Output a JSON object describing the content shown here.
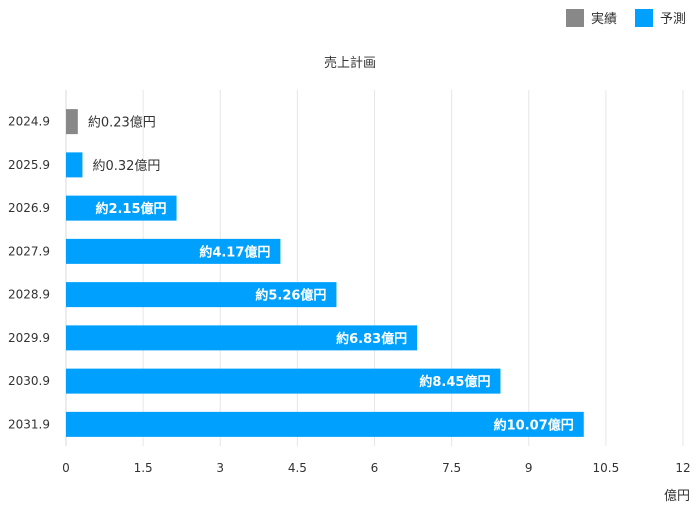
{
  "legend": {
    "actual": {
      "label": "実績",
      "color": "#888888"
    },
    "forecast": {
      "label": "予測",
      "color": "#00A0FF"
    }
  },
  "chart_data": {
    "type": "bar",
    "orientation": "horizontal",
    "title": "売上計画",
    "xlabel": "億円",
    "ylabel": "",
    "xlim": [
      0,
      12
    ],
    "xticks": [
      "0",
      "1.5",
      "3",
      "4.5",
      "6",
      "7.5",
      "9",
      "10.5",
      "12"
    ],
    "grid": true,
    "legend_position": "top-right",
    "categories": [
      "2024.9",
      "2025.9",
      "2026.9",
      "2027.9",
      "2028.9",
      "2029.9",
      "2030.9",
      "2031.9"
    ],
    "values": [
      0.23,
      0.32,
      2.15,
      4.17,
      5.26,
      6.83,
      8.45,
      10.07
    ],
    "types": [
      "actual",
      "forecast",
      "forecast",
      "forecast",
      "forecast",
      "forecast",
      "forecast",
      "forecast"
    ],
    "data_labels": [
      "約0.23億円",
      "約0.32億円",
      "約2.15億円",
      "約4.17億円",
      "約5.26億円",
      "約6.83億円",
      "約8.45億円",
      "約10.07億円"
    ]
  }
}
